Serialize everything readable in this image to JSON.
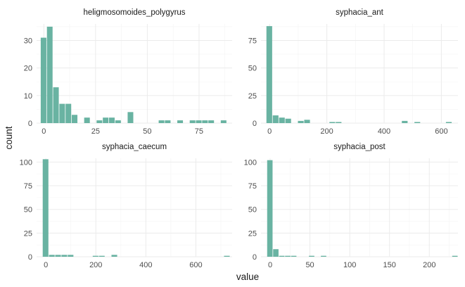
{
  "chart_data": {
    "type": "bar",
    "xlabel": "value",
    "ylabel": "count",
    "bar_color": "#69b3a2",
    "grid": true,
    "panels": [
      {
        "title": "heligmosomoides_polygyrus",
        "xlim": [
          -3.5,
          91
        ],
        "ylim": [
          0,
          36
        ],
        "xticks": [
          0,
          25,
          50,
          75
        ],
        "yticks": [
          0,
          10,
          20,
          30
        ],
        "bars": [
          {
            "x0": -1.5,
            "x1": 1.5,
            "count": 31
          },
          {
            "x0": 1.5,
            "x1": 4.5,
            "count": 35
          },
          {
            "x0": 4.5,
            "x1": 7.5,
            "count": 13
          },
          {
            "x0": 7.5,
            "x1": 10.5,
            "count": 7
          },
          {
            "x0": 10.5,
            "x1": 13.5,
            "count": 7
          },
          {
            "x0": 13.5,
            "x1": 16.5,
            "count": 3
          },
          {
            "x0": 19.5,
            "x1": 22.5,
            "count": 2
          },
          {
            "x0": 25.5,
            "x1": 28.5,
            "count": 1
          },
          {
            "x0": 28.5,
            "x1": 31.5,
            "count": 2
          },
          {
            "x0": 31.5,
            "x1": 34.5,
            "count": 2
          },
          {
            "x0": 34.5,
            "x1": 37.5,
            "count": 1
          },
          {
            "x0": 40.5,
            "x1": 43.5,
            "count": 4
          },
          {
            "x0": 55.5,
            "x1": 58.5,
            "count": 1
          },
          {
            "x0": 58.5,
            "x1": 61.5,
            "count": 1
          },
          {
            "x0": 64.5,
            "x1": 67.5,
            "count": 1
          },
          {
            "x0": 70.5,
            "x1": 73.5,
            "count": 1
          },
          {
            "x0": 73.5,
            "x1": 76.5,
            "count": 1
          },
          {
            "x0": 76.5,
            "x1": 79.5,
            "count": 1
          },
          {
            "x0": 79.5,
            "x1": 82.5,
            "count": 1
          },
          {
            "x0": 85.5,
            "x1": 88.5,
            "count": 1
          }
        ]
      },
      {
        "title": "syphacia_ant",
        "xlim": [
          -30,
          658
        ],
        "ylim": [
          0,
          90
        ],
        "xticks": [
          0,
          200,
          400,
          600
        ],
        "yticks": [
          0,
          25,
          50,
          75
        ],
        "bars": [
          {
            "x0": -11,
            "x1": 11,
            "count": 88
          },
          {
            "x0": 11,
            "x1": 33,
            "count": 7
          },
          {
            "x0": 33,
            "x1": 55,
            "count": 5
          },
          {
            "x0": 55,
            "x1": 77,
            "count": 4
          },
          {
            "x0": 99,
            "x1": 121,
            "count": 2
          },
          {
            "x0": 121,
            "x1": 143,
            "count": 3
          },
          {
            "x0": 209,
            "x1": 231,
            "count": 1
          },
          {
            "x0": 231,
            "x1": 253,
            "count": 1
          },
          {
            "x0": 462,
            "x1": 484,
            "count": 2
          },
          {
            "x0": 506,
            "x1": 528,
            "count": 1
          },
          {
            "x0": 616,
            "x1": 638,
            "count": 1
          }
        ]
      },
      {
        "title": "syphacia_caecum",
        "xlim": [
          -37,
          745
        ],
        "ylim": [
          0,
          104
        ],
        "xticks": [
          0,
          200,
          400,
          600
        ],
        "yticks": [
          0,
          25,
          50,
          75,
          100
        ],
        "bars": [
          {
            "x0": -12.5,
            "x1": 12.5,
            "count": 103
          },
          {
            "x0": 12.5,
            "x1": 37.5,
            "count": 2
          },
          {
            "x0": 37.5,
            "x1": 62.5,
            "count": 2
          },
          {
            "x0": 62.5,
            "x1": 87.5,
            "count": 2
          },
          {
            "x0": 87.5,
            "x1": 112.5,
            "count": 2
          },
          {
            "x0": 187.5,
            "x1": 212.5,
            "count": 1
          },
          {
            "x0": 212.5,
            "x1": 237.5,
            "count": 1
          },
          {
            "x0": 262.5,
            "x1": 287.5,
            "count": 2
          },
          {
            "x0": 712.5,
            "x1": 737.5,
            "count": 1
          }
        ]
      },
      {
        "title": "syphacia_post",
        "xlim": [
          -11.5,
          236
        ],
        "ylim": [
          0,
          104
        ],
        "xticks": [
          0,
          50,
          100,
          150,
          200
        ],
        "yticks": [
          0,
          25,
          50,
          75,
          100
        ],
        "bars": [
          {
            "x0": -3.75,
            "x1": 3.75,
            "count": 102
          },
          {
            "x0": 3.75,
            "x1": 11.25,
            "count": 8
          },
          {
            "x0": 11.25,
            "x1": 18.75,
            "count": 1
          },
          {
            "x0": 18.75,
            "x1": 26.25,
            "count": 1
          },
          {
            "x0": 26.25,
            "x1": 33.75,
            "count": 1
          },
          {
            "x0": 48.75,
            "x1": 56.25,
            "count": 1
          },
          {
            "x0": 63.75,
            "x1": 71.25,
            "count": 1
          },
          {
            "x0": 228.75,
            "x1": 236.25,
            "count": 1
          }
        ]
      }
    ]
  }
}
